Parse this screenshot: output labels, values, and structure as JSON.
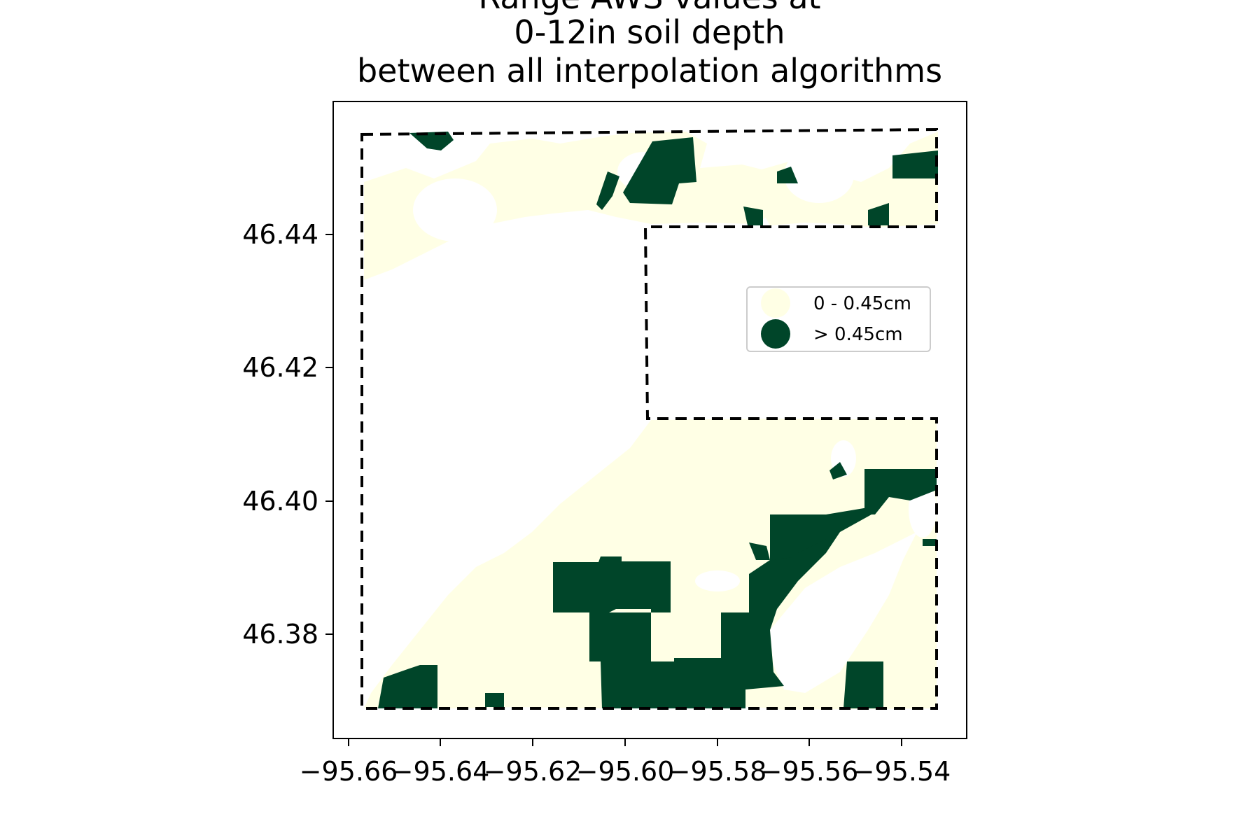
{
  "title_lines": [
    "Range AWS values at",
    "0-12in soil depth",
    "between all interpolation algorithms"
  ],
  "axes": {
    "xticks": [
      "−95.66",
      "−95.64",
      "−95.62",
      "−95.60",
      "−95.58",
      "−95.56",
      "−95.54"
    ],
    "yticks": [
      "46.44",
      "46.42",
      "46.40",
      "46.38"
    ],
    "xlim": [
      -95.663,
      -95.526
    ],
    "ylim": [
      46.365,
      46.46
    ]
  },
  "legend": {
    "placement": "right-middle",
    "items": [
      {
        "label": "0 - 0.45cm",
        "color": "#ffffe5"
      },
      {
        "label": "> 0.45cm",
        "color": "#004529"
      }
    ]
  },
  "colors": {
    "low": "#ffffe5",
    "high": "#004529",
    "boundary": "#000000"
  }
}
